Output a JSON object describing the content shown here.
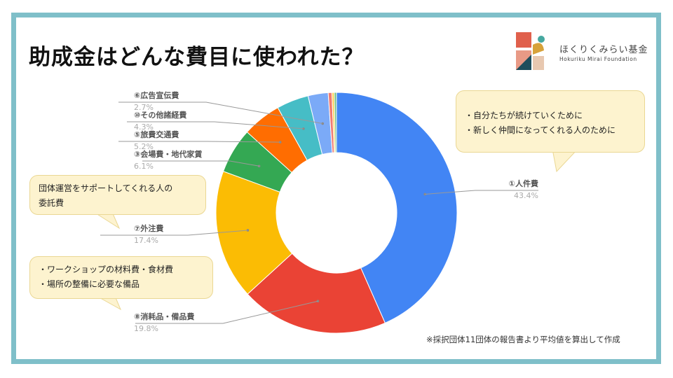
{
  "slide": {
    "title": "助成金はどんな費目に使われた？",
    "logo": {
      "name": "ほくりくみらい基金",
      "subname": "Hokuriku Mirai Foundation"
    },
    "note": "※採択団体11団体の報告書より平均値を算出して作成",
    "bubbles": [
      {
        "lines": [
          "・自分たちが続けていくために",
          "・新しく仲間になってくれる人のために"
        ]
      },
      {
        "lines": [
          "団体運営をサポートしてくれる人の",
          "委託費"
        ]
      },
      {
        "lines": [
          "・ワークショップの材料費・食材費",
          "・場所の整備に必要な備品"
        ]
      }
    ],
    "colors": {
      "frame": "#7fbfc9",
      "bubble_fill": "#fdf3cf",
      "bubble_border": "#ead793"
    }
  },
  "chart_data": {
    "type": "pie",
    "donut": true,
    "slices": [
      {
        "name": "①人件費",
        "percent_label": "43.4%",
        "value": 43.4,
        "color": "#4285f4"
      },
      {
        "name": "⑧消耗品・備品費",
        "percent_label": "19.8%",
        "value": 19.8,
        "color": "#ea4335"
      },
      {
        "name": "⑦外注費",
        "percent_label": "17.4%",
        "value": 17.4,
        "color": "#fbbc04"
      },
      {
        "name": "③会場費・地代家賃",
        "percent_label": "6.1%",
        "value": 6.1,
        "color": "#34a853"
      },
      {
        "name": "⑤旅費交通費",
        "percent_label": "5.2%",
        "value": 5.2,
        "color": "#ff6d01"
      },
      {
        "name": "⑩その他諸経費",
        "percent_label": "4.3%",
        "value": 4.3,
        "color": "#46bdc6"
      },
      {
        "name": "⑥広告宣伝費",
        "percent_label": "2.7%",
        "value": 2.7,
        "color": "#7baaf7"
      },
      {
        "value": 0.5,
        "color": "#f07b72"
      },
      {
        "value": 0.3,
        "color": "#fcd04f"
      },
      {
        "value": 0.3,
        "color": "#71c287"
      }
    ]
  }
}
